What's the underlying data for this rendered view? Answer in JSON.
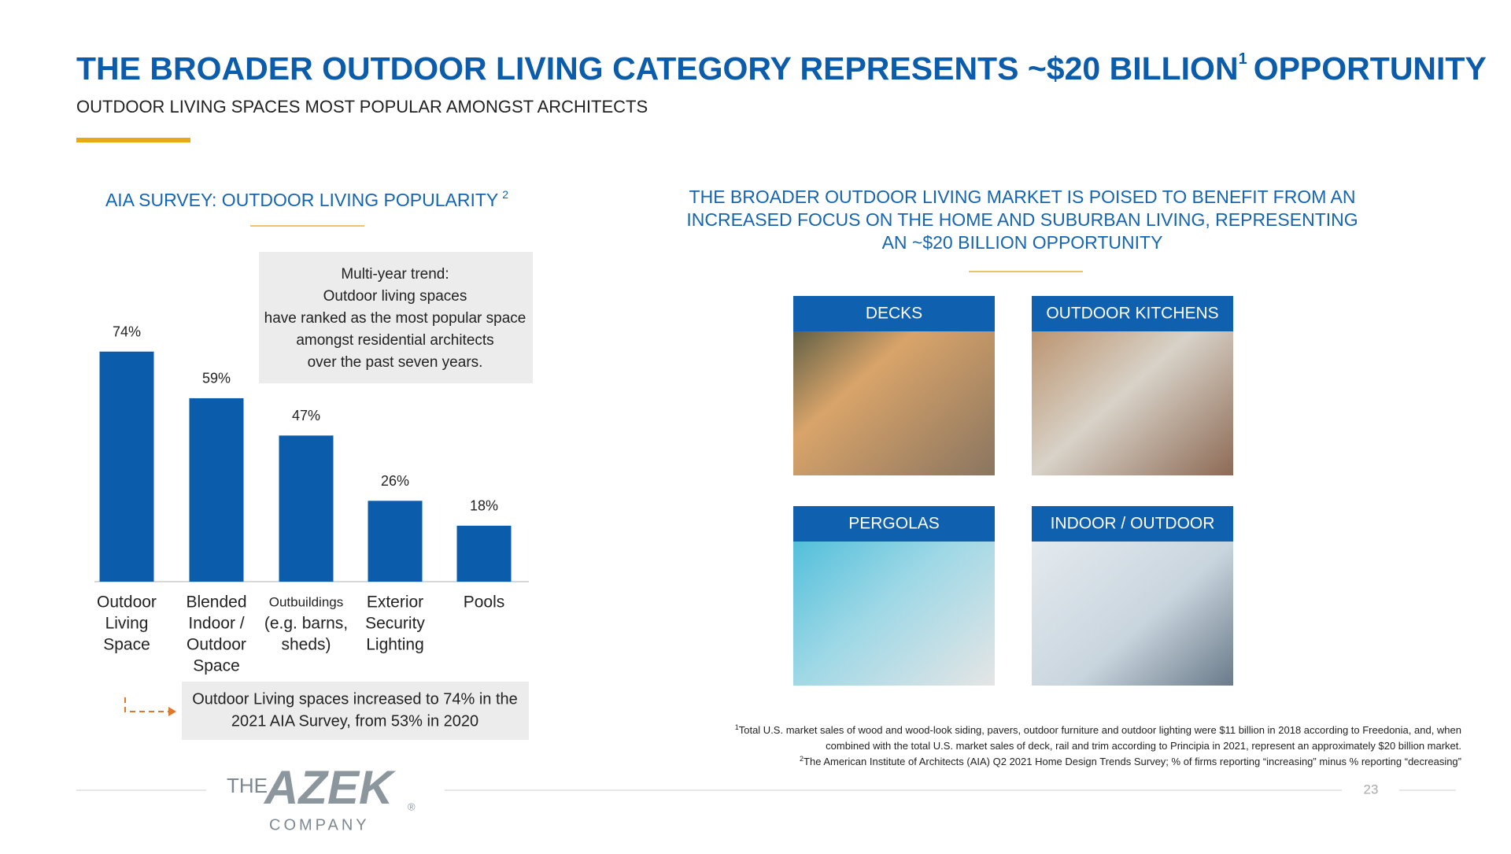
{
  "header": {
    "title_main": "THE BROADER OUTDOOR LIVING CATEGORY REPRESENTS ~$20 BILLION",
    "title_sup": "1",
    "title_end": "OPPORTUNITY",
    "subtitle": "OUTDOOR LIVING SPACES MOST POPULAR AMONGST ARCHITECTS"
  },
  "chart_data": {
    "type": "bar",
    "title": "AIA SURVEY: OUTDOOR LIVING POPULARITY",
    "title_sup": "2",
    "categories": [
      [
        "Outdoor",
        "Living",
        "Space"
      ],
      [
        "Blended",
        "Indoor /",
        "Outdoor",
        "Space"
      ],
      [
        "Outbuildings",
        "(e.g. barns,",
        "sheds)"
      ],
      [
        "Exterior",
        "Security",
        "Lighting"
      ],
      [
        "Pools"
      ]
    ],
    "values": [
      74,
      59,
      47,
      26,
      18
    ],
    "value_labels": [
      "74%",
      "59%",
      "47%",
      "26%",
      "18%"
    ],
    "color": "#0b5cab"
  },
  "trend_box": [
    "Multi-year trend:",
    "Outdoor living spaces",
    "have ranked as the most popular space",
    "amongst residential architects",
    "over the past seven years."
  ],
  "callout_box": [
    "Outdoor Living spaces increased to 74% in the",
    "2021 AIA Survey, from 53% in 2020"
  ],
  "market_heading": [
    "THE BROADER OUTDOOR LIVING MARKET IS POISED TO BENEFIT FROM AN",
    "INCREASED  FOCUS ON THE HOME AND SUBURBAN LIVING, REPRESENTING",
    "AN ~$20 BILLION OPPORTUNITY"
  ],
  "tiles": [
    {
      "label": "DECKS"
    },
    {
      "label": "OUTDOOR KITCHENS"
    },
    {
      "label": "PERGOLAS"
    },
    {
      "label": "INDOOR / OUTDOOR"
    }
  ],
  "footnotes": [
    {
      "sup": "1",
      "lines": [
        "Total U.S. market sales of wood and wood-look siding, pavers, outdoor furniture and outdoor lighting were $11 billion in 2018 according to Freedonia, and, when",
        "combined with the total U.S. market sales of deck, rail and trim according to Principia in 2021, represent an approximately $20 billion market."
      ]
    },
    {
      "sup": "2",
      "lines": [
        "The American Institute of Architects (AIA) Q2 2021 Home Design Trends Survey; % of firms reporting “increasing” minus % reporting “decreasing”"
      ]
    }
  ],
  "footer": {
    "logo_the": "THE",
    "logo_name": "AZEK",
    "logo_mark": "®",
    "logo_company": "COMPANY",
    "page_number": "23"
  }
}
